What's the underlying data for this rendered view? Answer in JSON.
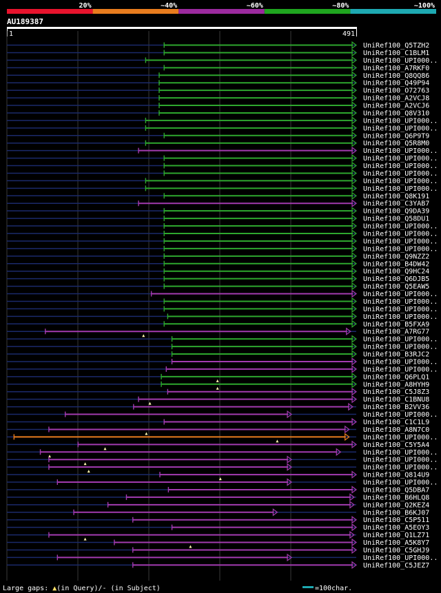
{
  "legend": {
    "labels": [
      "20%",
      "~40%",
      "~60%",
      "~80%",
      "~100%"
    ],
    "colors": [
      "#e8132d",
      "#e87c1e",
      "#9b2a9e",
      "#1fa51f",
      "#1ea9b2"
    ]
  },
  "query": {
    "id": "AU189387",
    "start_label": "1",
    "end_label": "491",
    "length": 491
  },
  "colors": {
    "green": "#2ea82e",
    "magenta": "#a33bb0",
    "orange": "#e87c1e",
    "navy": "#1b2a6b",
    "background": "#000000",
    "scale": "#1ea9b2"
  },
  "hits": [
    {
      "label": "UniRef100_Q5TZH2",
      "start": 221,
      "end": 491,
      "color": "green",
      "dot": null
    },
    {
      "label": "UniRef100_C1BLM1",
      "start": 221,
      "end": 491,
      "color": "green",
      "dot": null
    },
    {
      "label": "UniRef100_UPI000..",
      "start": 195,
      "end": 491,
      "color": "green",
      "dot": null
    },
    {
      "label": "UniRef100_A7RKF0",
      "start": 221,
      "end": 491,
      "color": "green",
      "dot": null
    },
    {
      "label": "UniRef100_Q8QQ86",
      "start": 214,
      "end": 491,
      "color": "green",
      "dot": null
    },
    {
      "label": "UniRef100_Q49P94",
      "start": 214,
      "end": 491,
      "color": "green",
      "dot": null
    },
    {
      "label": "UniRef100_O72763",
      "start": 214,
      "end": 491,
      "color": "green",
      "dot": null
    },
    {
      "label": "UniRef100_A2VCJ8",
      "start": 214,
      "end": 491,
      "color": "green",
      "dot": null
    },
    {
      "label": "UniRef100_A2VCJ6",
      "start": 214,
      "end": 491,
      "color": "green",
      "dot": null
    },
    {
      "label": "UniRef100_Q8V310",
      "start": 214,
      "end": 491,
      "color": "green",
      "dot": null
    },
    {
      "label": "UniRef100_UPI000..",
      "start": 195,
      "end": 491,
      "color": "green",
      "dot": null
    },
    {
      "label": "UniRef100_UPI000..",
      "start": 195,
      "end": 491,
      "color": "green",
      "dot": null
    },
    {
      "label": "UniRef100_Q6P9T9",
      "start": 221,
      "end": 491,
      "color": "green",
      "dot": null
    },
    {
      "label": "UniRef100_Q5R8M0",
      "start": 195,
      "end": 491,
      "color": "green",
      "dot": null
    },
    {
      "label": "UniRef100_UPI000..",
      "start": 185,
      "end": 491,
      "color": "magenta",
      "dot": null
    },
    {
      "label": "UniRef100_UPI000..",
      "start": 221,
      "end": 491,
      "color": "green",
      "dot": null
    },
    {
      "label": "UniRef100_UPI000..",
      "start": 221,
      "end": 491,
      "color": "green",
      "dot": null
    },
    {
      "label": "UniRef100_UPI000..",
      "start": 221,
      "end": 491,
      "color": "green",
      "dot": null
    },
    {
      "label": "UniRef100_UPI000..",
      "start": 195,
      "end": 491,
      "color": "green",
      "dot": null
    },
    {
      "label": "UniRef100_UPI000..",
      "start": 195,
      "end": 491,
      "color": "green",
      "dot": null
    },
    {
      "label": "UniRef100_Q8K191",
      "start": 221,
      "end": 491,
      "color": "green",
      "dot": null
    },
    {
      "label": "UniRef100_C3YAB7",
      "start": 185,
      "end": 491,
      "color": "magenta",
      "dot": null
    },
    {
      "label": "UniRef100_Q9DA39",
      "start": 221,
      "end": 491,
      "color": "green",
      "dot": null
    },
    {
      "label": "UniRef100_Q58DU1",
      "start": 221,
      "end": 491,
      "color": "green",
      "dot": null
    },
    {
      "label": "UniRef100_UPI000..",
      "start": 221,
      "end": 491,
      "color": "green",
      "dot": null
    },
    {
      "label": "UniRef100_UPI000..",
      "start": 221,
      "end": 491,
      "color": "green",
      "dot": null
    },
    {
      "label": "UniRef100_UPI000..",
      "start": 221,
      "end": 491,
      "color": "green",
      "dot": null
    },
    {
      "label": "UniRef100_UPI000..",
      "start": 221,
      "end": 491,
      "color": "green",
      "dot": null
    },
    {
      "label": "UniRef100_Q9NZZ2",
      "start": 221,
      "end": 491,
      "color": "green",
      "dot": null
    },
    {
      "label": "UniRef100_B4DW42",
      "start": 221,
      "end": 491,
      "color": "green",
      "dot": null
    },
    {
      "label": "UniRef100_Q9HC24",
      "start": 221,
      "end": 491,
      "color": "green",
      "dot": null
    },
    {
      "label": "UniRef100_Q6DJB5",
      "start": 221,
      "end": 491,
      "color": "green",
      "dot": null
    },
    {
      "label": "UniRef100_Q5EAW5",
      "start": 221,
      "end": 491,
      "color": "green",
      "dot": null
    },
    {
      "label": "UniRef100_UPI000..",
      "start": 203,
      "end": 491,
      "color": "magenta",
      "dot": null
    },
    {
      "label": "UniRef100_UPI000..",
      "start": 221,
      "end": 491,
      "color": "green",
      "dot": null
    },
    {
      "label": "UniRef100_UPI000..",
      "start": 221,
      "end": 491,
      "color": "green",
      "dot": null
    },
    {
      "label": "UniRef100_UPI000..",
      "start": 226,
      "end": 491,
      "color": "green",
      "dot": null
    },
    {
      "label": "UniRef100_B5FXA9",
      "start": 221,
      "end": 491,
      "color": "green",
      "dot": null
    },
    {
      "label": "UniRef100_A7RG77",
      "start": 54,
      "end": 483,
      "color": "magenta",
      "dot": 192
    },
    {
      "label": "UniRef100_UPI000..",
      "start": 232,
      "end": 491,
      "color": "green",
      "dot": null
    },
    {
      "label": "UniRef100_UPI000..",
      "start": 232,
      "end": 491,
      "color": "green",
      "dot": null
    },
    {
      "label": "UniRef100_B3RJC2",
      "start": 232,
      "end": 491,
      "color": "green",
      "dot": null
    },
    {
      "label": "UniRef100_UPI000..",
      "start": 232,
      "end": 491,
      "color": "magenta",
      "dot": null
    },
    {
      "label": "UniRef100_UPI000..",
      "start": 224,
      "end": 491,
      "color": "magenta",
      "dot": null
    },
    {
      "label": "UniRef100_Q6PLQ1",
      "start": 217,
      "end": 491,
      "color": "green",
      "dot": 296
    },
    {
      "label": "UniRef100_A8HYH9",
      "start": 217,
      "end": 491,
      "color": "green",
      "dot": 296
    },
    {
      "label": "UniRef100_C5J8Z3",
      "start": 226,
      "end": 491,
      "color": "magenta",
      "dot": null
    },
    {
      "label": "UniRef100_C1BNU8",
      "start": 185,
      "end": 491,
      "color": "magenta",
      "dot": 201
    },
    {
      "label": "UniRef100_B2VV36",
      "start": 178,
      "end": 486,
      "color": "magenta",
      "dot": null
    },
    {
      "label": "UniRef100_UPI000..",
      "start": 82,
      "end": 400,
      "color": "magenta",
      "dot": null
    },
    {
      "label": "UniRef100_C1C1L9",
      "start": 221,
      "end": 491,
      "color": "magenta",
      "dot": null
    },
    {
      "label": "UniRef100_A8N7C0",
      "start": 59,
      "end": 481,
      "color": "magenta",
      "dot": 196
    },
    {
      "label": "UniRef100_UPI000..",
      "start": 10,
      "end": 481,
      "color": "orange",
      "dot": 380
    },
    {
      "label": "UniRef100_C5Y5A4",
      "start": 100,
      "end": 491,
      "color": "magenta",
      "dot": 138
    },
    {
      "label": "UniRef100_UPI000..",
      "start": 47,
      "end": 469,
      "color": "magenta",
      "dot": 60
    },
    {
      "label": "UniRef100_UPI000..",
      "start": 59,
      "end": 400,
      "color": "magenta",
      "dot": 110
    },
    {
      "label": "UniRef100_UPI000..",
      "start": 59,
      "end": 400,
      "color": "magenta",
      "dot": 115
    },
    {
      "label": "UniRef100_Q814U9",
      "start": 215,
      "end": 491,
      "color": "magenta",
      "dot": 300
    },
    {
      "label": "UniRef100_UPI000..",
      "start": 71,
      "end": 400,
      "color": "magenta",
      "dot": null
    },
    {
      "label": "UniRef100_Q5DBA7",
      "start": 227,
      "end": 491,
      "color": "magenta",
      "dot": null
    },
    {
      "label": "UniRef100_B6HLQ8",
      "start": 168,
      "end": 488,
      "color": "magenta",
      "dot": null
    },
    {
      "label": "UniRef100_Q2KEZ4",
      "start": 142,
      "end": 488,
      "color": "magenta",
      "dot": null
    },
    {
      "label": "UniRef100_B6KJ07",
      "start": 94,
      "end": 380,
      "color": "magenta",
      "dot": null
    },
    {
      "label": "UniRef100_C5P511",
      "start": 177,
      "end": 491,
      "color": "magenta",
      "dot": null
    },
    {
      "label": "UniRef100_A5EOY3",
      "start": 232,
      "end": 491,
      "color": "magenta",
      "dot": null
    },
    {
      "label": "UniRef100_Q1LZ71",
      "start": 59,
      "end": 488,
      "color": "magenta",
      "dot": 110
    },
    {
      "label": "UniRef100_A5K8Y7",
      "start": 151,
      "end": 491,
      "color": "magenta",
      "dot": 258
    },
    {
      "label": "UniRef100_C5GHJ9",
      "start": 177,
      "end": 491,
      "color": "magenta",
      "dot": null
    },
    {
      "label": "UniRef100_UPI000..",
      "start": 71,
      "end": 400,
      "color": "magenta",
      "dot": null
    },
    {
      "label": "UniRef100_C5JEZ7",
      "start": 177,
      "end": 491,
      "color": "magenta",
      "dot": null
    }
  ],
  "footer": {
    "gaps_prefix": "Large gaps: ",
    "gaps_query": "(in Query)/",
    "gaps_subject": "- (in Subject)",
    "scale_label": "=100char."
  }
}
